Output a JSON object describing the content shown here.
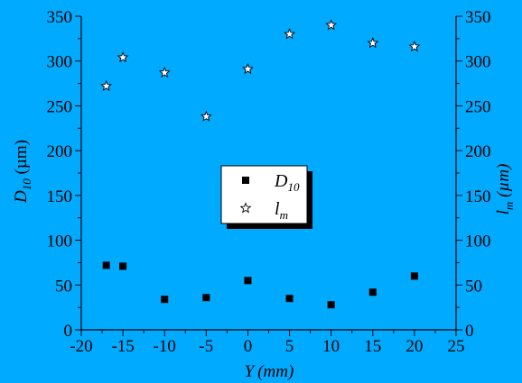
{
  "colors": {
    "background": "#00aaff",
    "axis": "#000000",
    "marker_fill_square": "#000000",
    "marker_fill_star": "#ffffff",
    "legend_bg": "#ffffff",
    "legend_shadow": "#000000"
  },
  "chart_data": {
    "type": "scatter",
    "x_axis": {
      "label": "Y",
      "unit": "(mm)",
      "range": [
        -20,
        25
      ],
      "ticks": [
        "-20",
        "-15",
        "-10",
        "-5",
        "0",
        "5",
        "10",
        "15",
        "20",
        "25"
      ]
    },
    "y_left": {
      "label_main": "D",
      "label_sub": "10",
      "label_unit": " (µm)",
      "range": [
        0,
        350
      ],
      "ticks": [
        "0",
        "50",
        "100",
        "150",
        "200",
        "250",
        "300",
        "350"
      ]
    },
    "y_right": {
      "label_main": "l",
      "label_sub": "m",
      "label_unit": " (µm)",
      "range": [
        0,
        350
      ],
      "ticks": [
        "0",
        "50",
        "100",
        "150",
        "200",
        "250",
        "300",
        "350"
      ]
    },
    "legend": {
      "placement": "center",
      "entries": [
        {
          "symbol": "square",
          "main": "D",
          "sub": "10"
        },
        {
          "symbol": "star",
          "main": "l",
          "sub": "m"
        }
      ]
    },
    "series": [
      {
        "name": "D10",
        "marker": "square",
        "x": [
          -17,
          -15,
          -10,
          -5,
          0,
          5,
          10,
          15,
          20
        ],
        "y": [
          72,
          71,
          34,
          36,
          55,
          35,
          28,
          42,
          60
        ]
      },
      {
        "name": "lm",
        "marker": "star",
        "x": [
          -17,
          -15,
          -10,
          -5,
          0,
          5,
          10,
          15,
          20
        ],
        "y": [
          272,
          304,
          287,
          238,
          291,
          330,
          340,
          320,
          316
        ]
      }
    ],
    "grid": false
  }
}
